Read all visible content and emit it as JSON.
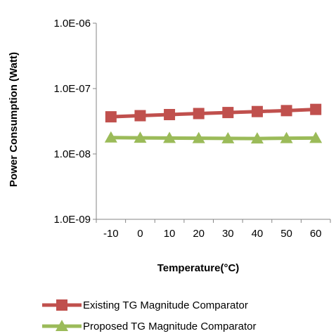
{
  "chart_data": {
    "type": "line",
    "title": "",
    "xlabel": "Temperature(°C)",
    "ylabel": "Power Consumption (Watt)",
    "y_scale": "log",
    "ylim": [
      1e-09,
      1e-06
    ],
    "y_tick_values": [
      1e-09,
      1e-08,
      1e-07,
      1e-06
    ],
    "y_tick_labels": [
      "1.0E-09",
      "1.0E-08",
      "1.0E-07",
      "1.0E-06"
    ],
    "x": [
      -10,
      0,
      10,
      20,
      30,
      40,
      50,
      60
    ],
    "x_tick_labels": [
      "-10",
      "0",
      "10",
      "20",
      "30",
      "40",
      "50",
      "60"
    ],
    "grid": false,
    "legend_position": "bottom",
    "series": [
      {
        "name": "Existing TG Magnitude Comparator",
        "color": "#c0504d",
        "marker": "square",
        "values": [
          3.7e-08,
          3.85e-08,
          4e-08,
          4.15e-08,
          4.3e-08,
          4.45e-08,
          4.6e-08,
          4.8e-08
        ]
      },
      {
        "name": "Proposed TG Magnitude Comparator",
        "color": "#9bbb59",
        "marker": "triangle",
        "values": [
          1.78e-08,
          1.76e-08,
          1.75e-08,
          1.74e-08,
          1.73e-08,
          1.72e-08,
          1.74e-08,
          1.75e-08
        ]
      }
    ]
  }
}
